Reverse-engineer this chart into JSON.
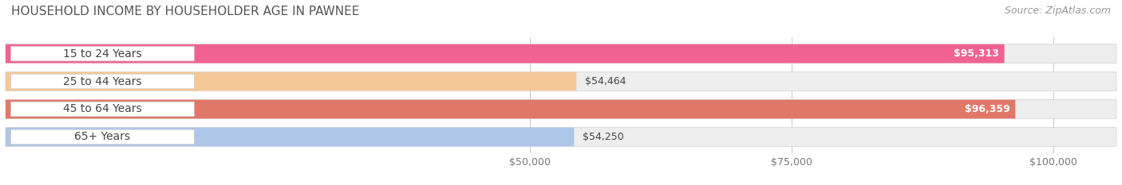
{
  "title": "HOUSEHOLD INCOME BY HOUSEHOLDER AGE IN PAWNEE",
  "source": "Source: ZipAtlas.com",
  "categories": [
    "15 to 24 Years",
    "25 to 44 Years",
    "45 to 64 Years",
    "65+ Years"
  ],
  "values": [
    95313,
    54464,
    96359,
    54250
  ],
  "bar_colors": [
    "#f06292",
    "#f5c898",
    "#e07868",
    "#aec6e8"
  ],
  "bar_labels": [
    "$95,313",
    "$54,464",
    "$96,359",
    "$54,250"
  ],
  "xmax": 100000,
  "xticks": [
    50000,
    75000,
    100000
  ],
  "xticklabels": [
    "$50,000",
    "$75,000",
    "$100,000"
  ],
  "background_color": "#ffffff",
  "bar_bg_color": "#eeeeee",
  "label_pill_color": "#ffffff",
  "title_fontsize": 11,
  "source_fontsize": 9,
  "bar_label_fontsize": 9,
  "tick_fontsize": 9,
  "cat_label_fontsize": 10
}
